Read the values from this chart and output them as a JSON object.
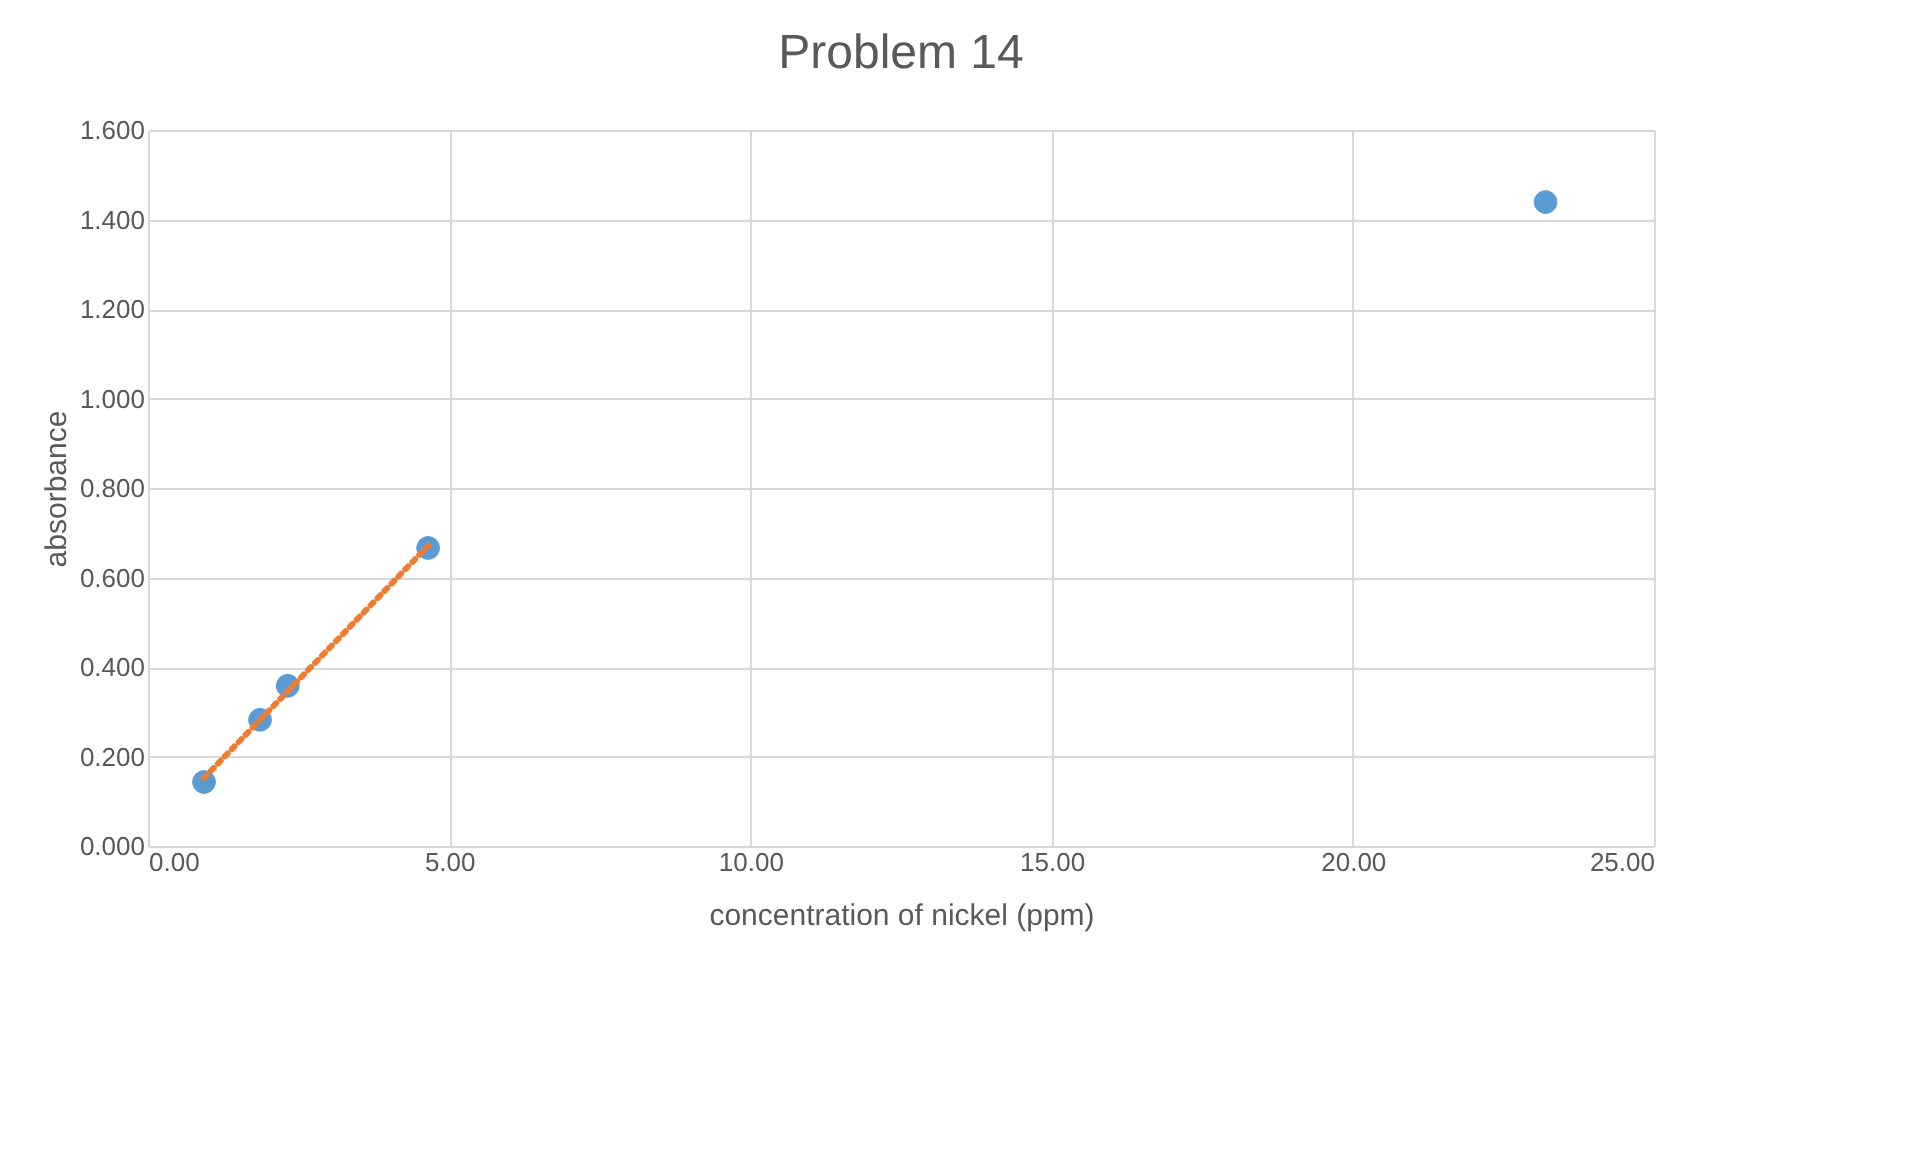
{
  "chart_data": {
    "type": "scatter",
    "title": "Problem 14",
    "xlabel": "concentration of nickel (ppm)",
    "ylabel": "absorbance",
    "series": [
      {
        "color": "#5b9bd5",
        "x": [
          0.93,
          1.86,
          2.32,
          4.65,
          23.2
        ],
        "values": [
          0.143,
          0.282,
          0.358,
          0.666,
          1.439
        ],
        "marker": "circle"
      },
      {
        "type": "line",
        "color": "#ed7d31",
        "x": [
          0.93,
          4.65
        ],
        "values": [
          0.152,
          0.671
        ],
        "line_style": "dotted"
      }
    ],
    "xlim": [
      0,
      25
    ],
    "xticks": [
      {
        "value": 0,
        "label": "0.00"
      },
      {
        "value": 5,
        "label": "5.00"
      },
      {
        "value": 10,
        "label": "10.00"
      },
      {
        "value": 15,
        "label": "15.00"
      },
      {
        "value": 20,
        "label": "20.00"
      },
      {
        "value": 25,
        "label": "25.00"
      }
    ],
    "ylim": [
      0,
      1.6
    ],
    "yticks": [
      {
        "value": 0,
        "label": "0.000"
      },
      {
        "value": 0.2,
        "label": "0.200"
      },
      {
        "value": 0.4,
        "label": "0.400"
      },
      {
        "value": 0.6,
        "label": "0.600"
      },
      {
        "value": 0.8,
        "label": "0.800"
      },
      {
        "value": 1.0,
        "label": "1.000"
      },
      {
        "value": 1.2,
        "label": "1.200"
      },
      {
        "value": 1.4,
        "label": "1.400"
      },
      {
        "value": 1.6,
        "label": "1.600"
      }
    ],
    "grid": true
  }
}
